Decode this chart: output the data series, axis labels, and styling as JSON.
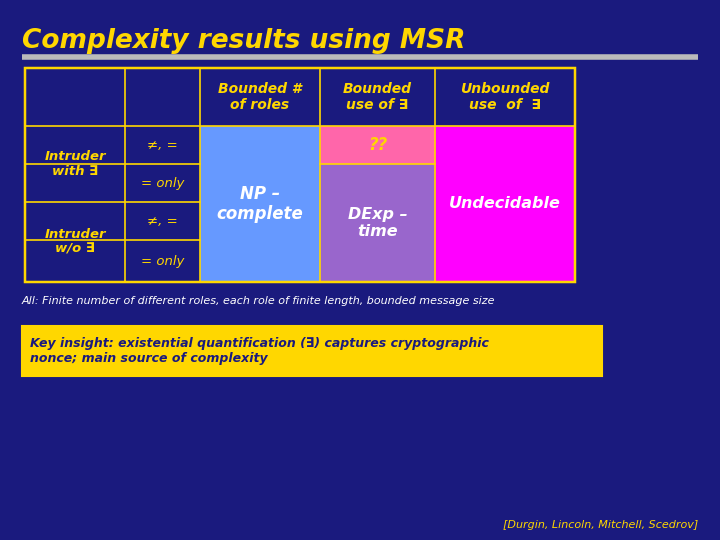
{
  "title": "Complexity results using MSR",
  "bg_color": "#1a1a7e",
  "title_color": "#FFD700",
  "text_color": "#FFD700",
  "white_text": "#FFFFFF",
  "col_headers": [
    "Bounded #\nof roles",
    "Bounded\nuse of ∃",
    "Unbounded\nuse  of  ∃"
  ],
  "cell_np_color": "#6699FF",
  "cell_dexp_color": "#9966CC",
  "cell_undecidable_color": "#FF00FF",
  "cell_hatch_bg": "#FF66AA",
  "np_text": "NP –\ncomplete",
  "dexp_text": "DExp –\ntime",
  "undecidable_text": "Undecidable",
  "question_text": "??",
  "footer_text": "All: Finite number of different roles, each role of finite length, bounded message size",
  "insight_text": "Key insight: existential quantification (∃) captures cryptographic\nnonce; main source of complexity",
  "citation_text": "[Durgin, Lincoln, Mitchell, Scedrov]",
  "table_border": "#FFD700",
  "insight_bg": "#FFD700",
  "insight_border": "#FFD700",
  "insight_text_color": "#1a1a7e",
  "separator_color": "#BBBBBB"
}
